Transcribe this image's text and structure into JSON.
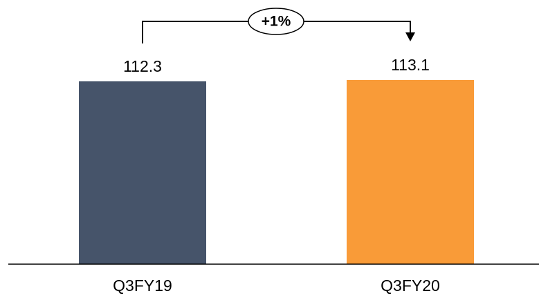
{
  "chart_data": {
    "type": "bar",
    "title": "",
    "xlabel": "",
    "ylabel": "",
    "categories": [
      "Q3FY19",
      "Q3FY20"
    ],
    "values": [
      112.3,
      113.1
    ],
    "value_labels": [
      "112.3",
      "113.1"
    ],
    "bar_colors": [
      "#46546A",
      "#F99B38"
    ],
    "ylim": [
      0,
      113.1
    ],
    "grid": false,
    "legend": "none",
    "annotations": [
      {
        "text": "+1%",
        "from_category": "Q3FY19",
        "to_category": "Q3FY20",
        "style": "bracket-arrow"
      }
    ]
  }
}
